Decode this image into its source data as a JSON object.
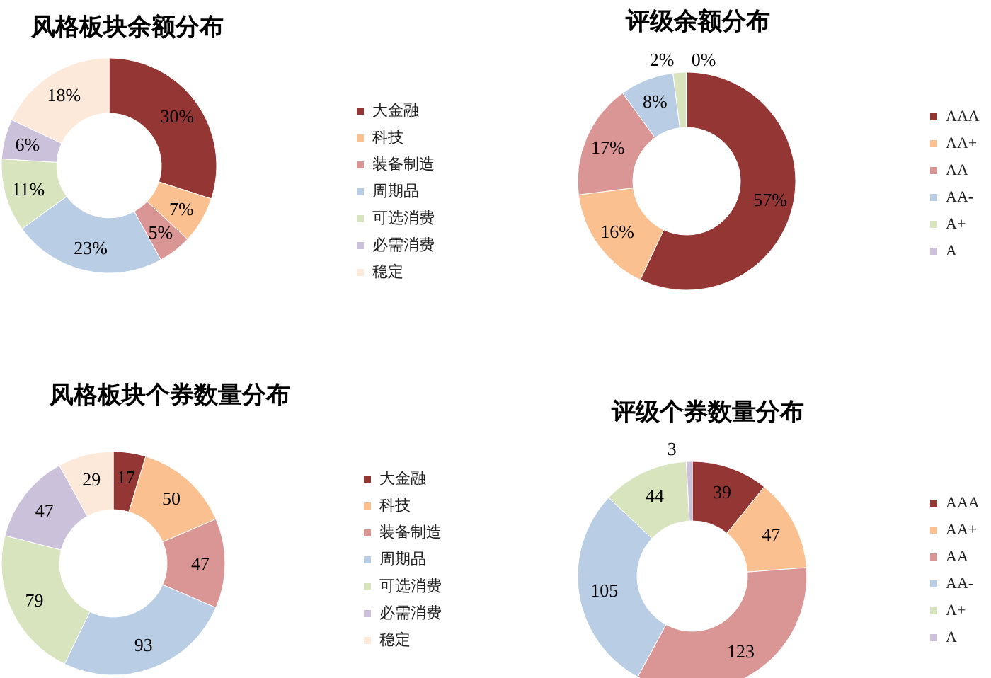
{
  "chart_data": [
    {
      "type": "donut",
      "title": "风格板块余额分布",
      "categories": [
        "大金融",
        "科技",
        "装备制造",
        "周期品",
        "可选消费",
        "必需消费",
        "稳定"
      ],
      "values": [
        30,
        7,
        5,
        23,
        11,
        6,
        18
      ],
      "value_labels": [
        "30%",
        "7%",
        "5%",
        "23%",
        "11%",
        "6%",
        "18%"
      ],
      "colors": [
        "#943634",
        "#fac08f",
        "#d99694",
        "#b9cde5",
        "#d7e4bd",
        "#ccc1da",
        "#fde9d9"
      ],
      "legend": "right"
    },
    {
      "type": "donut",
      "title": "评级余额分布",
      "categories": [
        "AAA",
        "AA+",
        "AA",
        "AA-",
        "A+",
        "A"
      ],
      "values": [
        57,
        16,
        17,
        8,
        2,
        0
      ],
      "value_labels": [
        "57%",
        "16%",
        "17%",
        "8%",
        "2%",
        "0%"
      ],
      "colors": [
        "#943634",
        "#fac08f",
        "#d99694",
        "#b9cde5",
        "#d7e4bd",
        "#ccc1da"
      ],
      "legend": "right"
    },
    {
      "type": "donut",
      "title": "风格板块个券数量分布",
      "categories": [
        "大金融",
        "科技",
        "装备制造",
        "周期品",
        "可选消费",
        "必需消费",
        "稳定"
      ],
      "values": [
        17,
        50,
        47,
        93,
        79,
        47,
        29
      ],
      "data_labels": true,
      "colors": [
        "#943634",
        "#fac08f",
        "#d99694",
        "#b9cde5",
        "#d7e4bd",
        "#ccc1da",
        "#fde9d9"
      ],
      "legend": "right"
    },
    {
      "type": "donut",
      "title": "评级个券数量分布",
      "categories": [
        "AAA",
        "AA+",
        "AA",
        "AA-",
        "A+",
        "A"
      ],
      "values": [
        39,
        47,
        123,
        105,
        44,
        3
      ],
      "data_labels": true,
      "colors": [
        "#943634",
        "#fac08f",
        "#d99694",
        "#b9cde5",
        "#d7e4bd",
        "#ccc1da"
      ],
      "legend": "right"
    }
  ]
}
